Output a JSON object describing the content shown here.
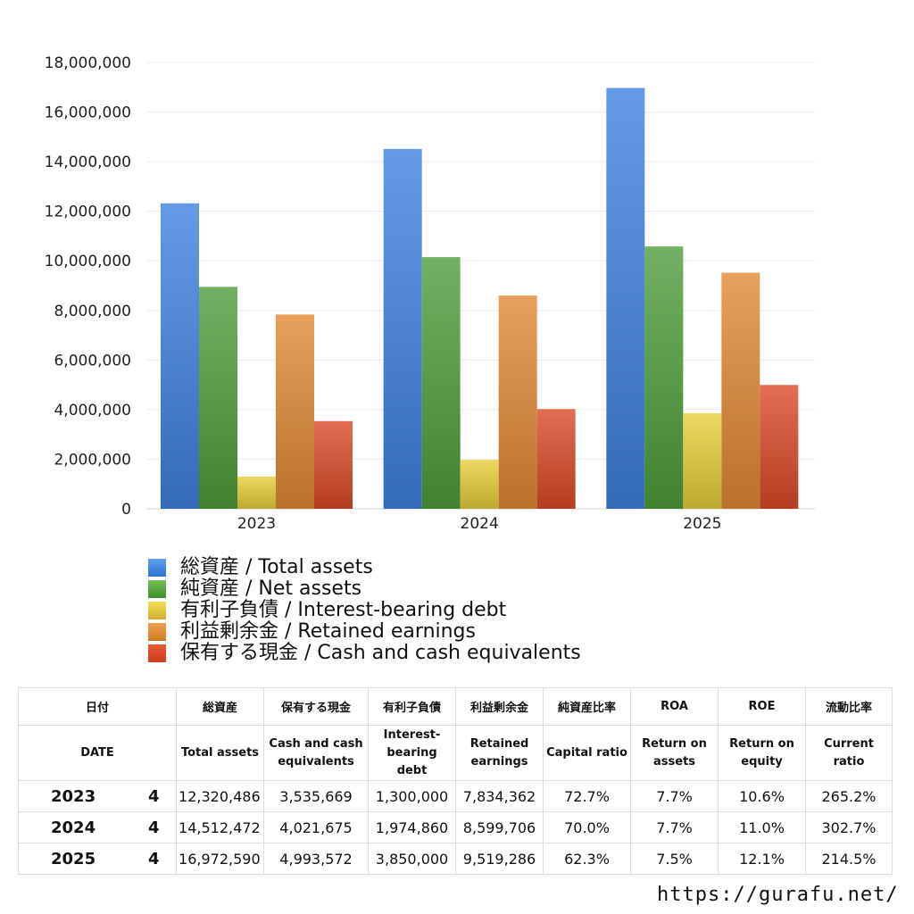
{
  "chart_data": {
    "type": "bar",
    "categories": [
      "2023",
      "2024",
      "2025"
    ],
    "ylim": [
      0,
      18000000
    ],
    "y_ticks": [
      "0",
      "2,000,000",
      "4,000,000",
      "6,000,000",
      "8,000,000",
      "10,000,000",
      "12,000,000",
      "14,000,000",
      "16,000,000",
      "18,000,000"
    ],
    "y_tick_values": [
      0,
      2000000,
      4000000,
      6000000,
      8000000,
      10000000,
      12000000,
      14000000,
      16000000,
      18000000
    ],
    "grid": true,
    "legend_position": "bottom",
    "series": [
      {
        "name": "総資産 / Total assets",
        "color": "#3f82e0",
        "values": [
          12320486,
          14512472,
          16972590
        ]
      },
      {
        "name": "純資産 / Net assets",
        "color": "#4f9e3c",
        "values": [
          8950000,
          10150000,
          10580000
        ]
      },
      {
        "name": "有利子負債 / Interest-bearing debt",
        "color": "#e8cf3a",
        "values": [
          1300000,
          1974860,
          3850000
        ]
      },
      {
        "name": "利益剰余金 / Retained earnings",
        "color": "#e18a35",
        "values": [
          7834362,
          8599706,
          9519286
        ]
      },
      {
        "name": "保有する現金 /  Cash and cash equivalents",
        "color": "#dc4a28",
        "values": [
          3535669,
          4021675,
          4993572
        ]
      }
    ]
  },
  "table": {
    "header_ja": [
      "日付",
      "総資産",
      "保有する現金",
      "有利子負債",
      "利益剰余金",
      "純資産比率",
      "ROA",
      "ROE",
      "流動比率"
    ],
    "header_en": [
      "DATE",
      "Total assets",
      "Cash and cash equivalents",
      "Interest-bearing debt",
      "Retained earnings",
      "Capital ratio",
      "Return on assets",
      "Return on equity",
      "Current ratio"
    ],
    "rows": [
      {
        "year": "2023",
        "q": "4",
        "total_assets": "12,320,486",
        "cash": "3,535,669",
        "debt": "1,300,000",
        "retained": "7,834,362",
        "capital_ratio": "72.7%",
        "roa": "7.7%",
        "roe": "10.6%",
        "current_ratio": "265.2%"
      },
      {
        "year": "2024",
        "q": "4",
        "total_assets": "14,512,472",
        "cash": "4,021,675",
        "debt": "1,974,860",
        "retained": "8,599,706",
        "capital_ratio": "70.0%",
        "roa": "7.7%",
        "roe": "11.0%",
        "current_ratio": "302.7%"
      },
      {
        "year": "2025",
        "q": "4",
        "total_assets": "16,972,590",
        "cash": "4,993,572",
        "debt": "3,850,000",
        "retained": "9,519,286",
        "capital_ratio": "62.3%",
        "roa": "7.5%",
        "roe": "12.1%",
        "current_ratio": "214.5%"
      }
    ]
  },
  "footer": {
    "url": "https://gurafu.net/"
  }
}
